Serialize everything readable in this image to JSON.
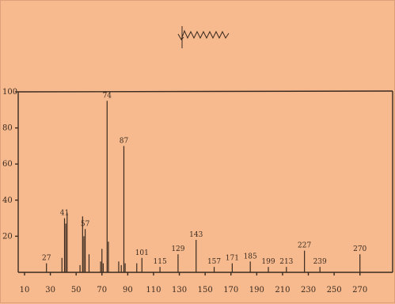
{
  "chart_data": {
    "type": "bar",
    "title": "",
    "xlabel": "",
    "ylabel": "",
    "xlim": [
      10,
      280
    ],
    "ylim": [
      0,
      100
    ],
    "x_ticks": [
      10,
      30,
      50,
      70,
      90,
      110,
      130,
      150,
      170,
      190,
      210,
      230,
      250,
      270
    ],
    "y_ticks": [
      20,
      40,
      60,
      80,
      100
    ],
    "grid": false,
    "peaks": [
      {
        "mz": 27,
        "intensity": 5,
        "label": "27"
      },
      {
        "mz": 39,
        "intensity": 8,
        "label": ""
      },
      {
        "mz": 41,
        "intensity": 30,
        "label": "41"
      },
      {
        "mz": 42,
        "intensity": 27,
        "label": ""
      },
      {
        "mz": 43,
        "intensity": 33,
        "label": ""
      },
      {
        "mz": 53,
        "intensity": 4,
        "label": ""
      },
      {
        "mz": 55,
        "intensity": 31,
        "label": ""
      },
      {
        "mz": 56,
        "intensity": 20,
        "label": ""
      },
      {
        "mz": 57,
        "intensity": 24,
        "label": "57"
      },
      {
        "mz": 60,
        "intensity": 10,
        "label": ""
      },
      {
        "mz": 69,
        "intensity": 6,
        "label": ""
      },
      {
        "mz": 70,
        "intensity": 13,
        "label": ""
      },
      {
        "mz": 71,
        "intensity": 5,
        "label": ""
      },
      {
        "mz": 74,
        "intensity": 95,
        "label": "74"
      },
      {
        "mz": 75,
        "intensity": 17,
        "label": ""
      },
      {
        "mz": 83,
        "intensity": 6,
        "label": ""
      },
      {
        "mz": 85,
        "intensity": 4,
        "label": ""
      },
      {
        "mz": 87,
        "intensity": 70,
        "label": "87"
      },
      {
        "mz": 88,
        "intensity": 5,
        "label": ""
      },
      {
        "mz": 97,
        "intensity": 5,
        "label": ""
      },
      {
        "mz": 101,
        "intensity": 8,
        "label": "101"
      },
      {
        "mz": 115,
        "intensity": 3,
        "label": "115"
      },
      {
        "mz": 129,
        "intensity": 10,
        "label": "129"
      },
      {
        "mz": 143,
        "intensity": 18,
        "label": "143"
      },
      {
        "mz": 157,
        "intensity": 3,
        "label": "157"
      },
      {
        "mz": 171,
        "intensity": 5,
        "label": "171"
      },
      {
        "mz": 185,
        "intensity": 6,
        "label": "185"
      },
      {
        "mz": 199,
        "intensity": 3,
        "label": "199"
      },
      {
        "mz": 213,
        "intensity": 3,
        "label": "213"
      },
      {
        "mz": 227,
        "intensity": 12,
        "label": "227"
      },
      {
        "mz": 239,
        "intensity": 3,
        "label": "239"
      },
      {
        "mz": 270,
        "intensity": 10,
        "label": "270"
      }
    ]
  }
}
